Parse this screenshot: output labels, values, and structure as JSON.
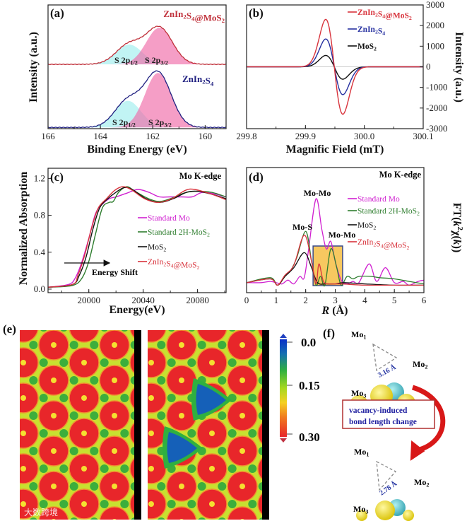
{
  "chart_data": [
    {
      "panel": "(a)",
      "type": "line",
      "xlabel": "Binding Energy (eV)",
      "ylabel": "Intensity (a.u.)",
      "xlim": [
        166,
        159.2
      ],
      "ylim": [
        0,
        200
      ],
      "xticks": [
        "166",
        "164",
        "162",
        "160"
      ],
      "xtick_values": [
        166,
        164,
        162,
        160
      ],
      "series": [
        {
          "name": "ZnIn2S4@MoS2",
          "color": "#c0303a",
          "baseline": 104,
          "components": [
            {
              "label": "S 2p1/2",
              "center": 162.9,
              "amplitude": 32,
              "sigma": 0.5,
              "fill": "#9feeee"
            },
            {
              "label": "S 2p3/2",
              "center": 161.75,
              "amplitude": 59,
              "sigma": 0.5,
              "fill": "#f06aa8"
            }
          ]
        },
        {
          "name": "ZnIn2S4",
          "color": "#202080",
          "baseline": 2,
          "components": [
            {
              "label": "S 2p1/2",
              "center": 162.95,
              "amplitude": 43,
              "sigma": 0.5,
              "fill": "#9feeee"
            },
            {
              "label": "S 2p3/2",
              "center": 161.8,
              "amplitude": 88,
              "sigma": 0.5,
              "fill": "#f06aa8"
            }
          ]
        }
      ]
    },
    {
      "panel": "(b)",
      "type": "line",
      "xlabel": "Magnific Field (mT)",
      "ylabel": "Intensity (a.u.)",
      "xlim": [
        299.8,
        300.1
      ],
      "ylim": [
        -3000,
        3000
      ],
      "xticks": [
        "299.8",
        "299.9",
        "300.0",
        "300.1"
      ],
      "xtick_values": [
        299.8,
        299.9,
        300.0,
        300.1
      ],
      "yticks": [
        "3000",
        "2000",
        "1000",
        "0",
        "-1000",
        "-2000",
        "-3000"
      ],
      "ytick_values": [
        3000,
        2000,
        1000,
        0,
        -1000,
        -2000,
        -3000
      ],
      "center": 299.949,
      "width": 0.0145,
      "series": [
        {
          "name": "ZnIn2S4@MoS2",
          "color": "#d8333c",
          "max": 2300,
          "min": -2300
        },
        {
          "name": "ZnIn2S4",
          "color": "#2630a0",
          "max": 1350,
          "min": -1350
        },
        {
          "name": "MoS2",
          "color": "#111111",
          "max": 550,
          "min": -600
        }
      ]
    },
    {
      "panel": "(c)",
      "type": "line",
      "title": "Mo K-edge",
      "xlabel": "Energy(eV)",
      "ylabel": "Normalized Absorption",
      "xlim": [
        19970,
        20101
      ],
      "ylim": [
        -0.0385,
        1.31
      ],
      "xticks": [
        "20000",
        "20040",
        "20080"
      ],
      "xtick_values": [
        20000,
        20040,
        20080
      ],
      "yticks": [
        "0.0",
        "0.4",
        "0.8",
        "1.2"
      ],
      "ytick_values": [
        0,
        0.4,
        0.8,
        1.2
      ],
      "annotation": "Energy Shift",
      "series": [
        {
          "name": "Standard Mo",
          "color": "#d020d0",
          "x": [
            19970,
            19985,
            19990,
            19995,
            20000,
            20005,
            20010,
            20015,
            20020,
            20028,
            20036,
            20044,
            20052,
            20060,
            20068,
            20076,
            20085,
            20101
          ],
          "y": [
            0.02,
            0.05,
            0.12,
            0.3,
            0.55,
            0.82,
            0.92,
            0.98,
            1.0,
            1.04,
            1.08,
            1.05,
            1.0,
            1.0,
            1.0,
            1.0,
            1.05,
            1.0
          ]
        },
        {
          "name": "Standard 2H-MoS2",
          "color": "#2e7d2e",
          "x": [
            19970,
            19988,
            19995,
            20000,
            20005,
            20010,
            20015,
            20018,
            20022,
            20028,
            20034,
            20044,
            20052,
            20060,
            20070,
            20078,
            20090,
            20101
          ],
          "y": [
            0.02,
            0.04,
            0.12,
            0.3,
            0.6,
            0.88,
            0.94,
            0.95,
            1.05,
            1.11,
            1.06,
            0.98,
            0.95,
            0.98,
            1.04,
            1.06,
            1.05,
            1.0
          ]
        },
        {
          "name": "MoS2",
          "color": "#111111",
          "x": [
            19970,
            19988,
            19993,
            19998,
            20003,
            20008,
            20014,
            20020,
            20026,
            20032,
            20042,
            20052,
            20062,
            20072,
            20080,
            20090,
            20101
          ],
          "y": [
            0.02,
            0.05,
            0.15,
            0.35,
            0.65,
            0.88,
            0.98,
            1.05,
            1.1,
            1.08,
            0.98,
            0.94,
            0.98,
            1.05,
            1.06,
            1.03,
            0.98
          ]
        },
        {
          "name": "ZnIn2S4@MoS2",
          "color": "#d8333c",
          "x": [
            19970,
            19988,
            19992,
            19997,
            20002,
            20007,
            20013,
            20019,
            20025,
            20031,
            20041,
            20051,
            20061,
            20071,
            20078,
            20090,
            20101
          ],
          "y": [
            0.02,
            0.05,
            0.15,
            0.37,
            0.66,
            0.88,
            0.98,
            1.07,
            1.11,
            1.08,
            0.98,
            0.94,
            0.98,
            1.07,
            1.08,
            1.03,
            0.97
          ]
        }
      ]
    },
    {
      "panel": "(d)",
      "type": "line",
      "title": "Mo K-edge",
      "xlabel": "R (Å)",
      "ylabel": "FT(k2χ(k))",
      "xlim": [
        0,
        6
      ],
      "ylim": [
        0,
        10
      ],
      "xticks": [
        "0",
        "1",
        "2",
        "3",
        "4",
        "5",
        "6"
      ],
      "xtick_values": [
        0,
        1,
        2,
        3,
        4,
        5,
        6
      ],
      "annotations": [
        "Mo-Mo",
        "Mo-S",
        "Mo-Mo"
      ],
      "highlight_range": [
        2.25,
        3.25
      ],
      "series": [
        {
          "name": "Standard Mo",
          "color": "#d020d0",
          "x": [
            0,
            0.5,
            0.8,
            1.0,
            1.2,
            1.4,
            1.6,
            1.8,
            1.95,
            2.1,
            2.35,
            2.55,
            2.7,
            2.85,
            3.0,
            3.2,
            3.4,
            3.6,
            3.8,
            4.15,
            4.4,
            4.7,
            5.0,
            5.3,
            5.5,
            5.8,
            6
          ],
          "y": [
            0.8,
            0.8,
            0.9,
            0.8,
            0.7,
            1.0,
            0.7,
            1.3,
            1.2,
            3.5,
            7.5,
            5.0,
            3.5,
            4.1,
            2.5,
            1.0,
            0.7,
            0.9,
            0.8,
            2.3,
            0.9,
            2.0,
            0.8,
            0.9,
            0.6,
            0.9,
            1.0
          ]
        },
        {
          "name": "Standard 2H-MoS2",
          "color": "#2e7d2e",
          "x": [
            0,
            0.8,
            1.05,
            1.3,
            1.5,
            1.7,
            2.0,
            2.2,
            2.35,
            2.5,
            2.65,
            2.85,
            3.05,
            3.2,
            3.4,
            3.6,
            3.8,
            4.2,
            4.5,
            5.0,
            5.5,
            6
          ],
          "y": [
            0.8,
            1.2,
            0.6,
            1.3,
            1.8,
            2.8,
            4.9,
            2.5,
            0.6,
            1.3,
            0.6,
            3.5,
            2.0,
            0.6,
            1.3,
            1.1,
            1.3,
            1.3,
            1.2,
            1.1,
            0.9,
            0.7
          ]
        },
        {
          "name": "MoS2",
          "color": "#111111",
          "x": [
            0,
            0.8,
            1.05,
            1.3,
            1.6,
            1.95,
            2.2,
            2.4,
            2.7,
            3.0,
            3.3,
            4,
            5,
            6
          ],
          "y": [
            0.8,
            1.1,
            0.6,
            1.3,
            2.0,
            3.2,
            2.0,
            0.8,
            0.7,
            0.7,
            0.8,
            0.7,
            0.6,
            0.6
          ]
        },
        {
          "name": "ZnIn2S4@MoS2",
          "color": "#d8333c",
          "x": [
            0,
            0.8,
            1.05,
            1.3,
            1.6,
            1.95,
            2.2,
            2.35,
            2.45,
            2.6,
            2.8,
            3.2,
            4,
            5,
            6
          ],
          "y": [
            0.8,
            1.1,
            0.6,
            1.4,
            2.2,
            4.6,
            2.5,
            0.7,
            2.3,
            0.9,
            0.7,
            0.7,
            0.6,
            0.6,
            0.6
          ]
        }
      ]
    }
  ],
  "panel_e": {
    "label": "(e)",
    "colorbar": {
      "ticks": [
        "0.0",
        "0.15",
        "0.30"
      ],
      "range": [
        0,
        0.3
      ]
    },
    "watermark": "大数跨境"
  },
  "panel_f": {
    "label": "(f)",
    "atom_1": "Mo1",
    "atom_2": "Mo2",
    "atom_3": "Mo3",
    "bond_before": "3.16 Å",
    "bond_after": "2.78 Å",
    "callout_line1": "vacancy-induced",
    "callout_line2": "bond length change"
  }
}
